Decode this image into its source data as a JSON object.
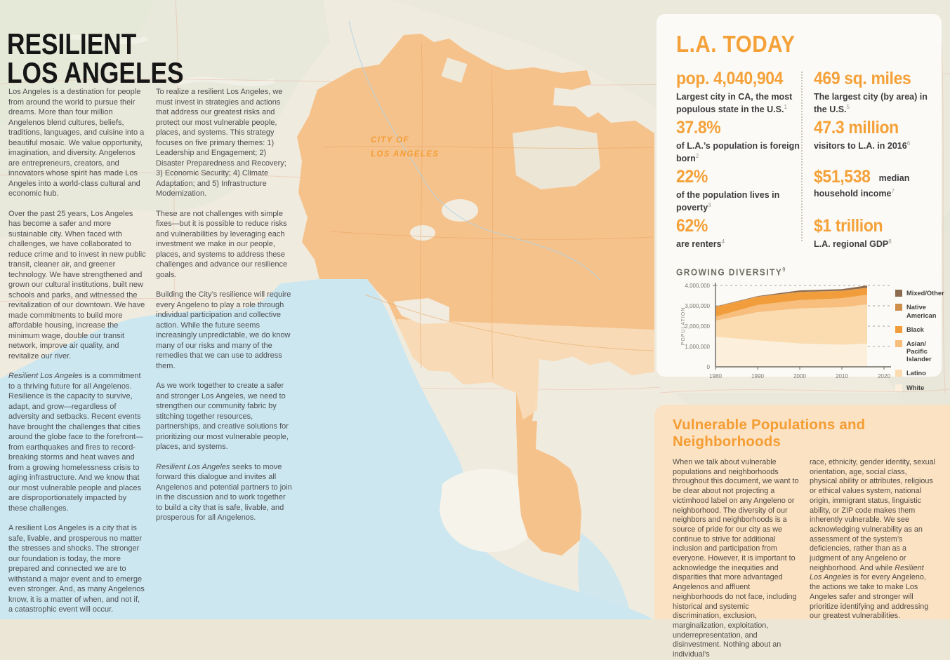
{
  "page_title": "RESILIENT\nLOS ANGELES",
  "map": {
    "label": "CITY OF\nLOS ANGELES",
    "colors": {
      "land": "#ece6d6",
      "ocean": "#cde7f0",
      "city": "#f6c28c",
      "city_south": "#f8dcb8",
      "accent": "#f5a139"
    }
  },
  "intro": {
    "col1": [
      "Los Angeles is a destination for people from around the world to pursue their dreams. More than four million Angelenos blend cultures, beliefs, traditions, languages, and cuisine into a beautiful mosaic. We value opportunity, imagination, and diversity. Angelenos are entrepreneurs, creators, and innovators whose spirit has made Los Angeles into a world-class cultural and economic hub.",
      "Over the past 25 years, Los Angeles has become a safer and more sustainable city. When faced with challenges, we have collaborated to reduce crime and to invest in new public transit, cleaner air, and greener technology. We have strengthened and grown our cultural institutions, built new schools and parks, and witnessed the revitalization of our downtown. We have made commitments to build more affordable housing, increase the minimum wage, double our transit network, improve air quality, and revitalize our river.",
      "*Resilient Los Angeles* is a commitment to a thriving future for all Angelenos. Resilience is the capacity to survive, adapt, and grow—regardless of adversity and setbacks. Recent events have brought the challenges that cities around the globe face to the forefront—from earthquakes and fires to record-breaking storms and heat waves and from a growing homelessness crisis to aging infrastructure. And we know that our most vulnerable people and places are disproportionately impacted by these challenges.",
      "A resilient Los Angeles is a city that is safe, livable, and prosperous no matter the stresses and shocks. The stronger our foundation is today, the more prepared and connected we are to withstand a major event and to emerge even stronger. And, as many Angelenos know, it is a matter of when, and not if, a catastrophic event will occur."
    ],
    "col2": [
      "To realize a resilient Los Angeles, we must invest in strategies and actions that address our greatest risks and protect our most vulnerable people, places, and systems. This strategy focuses on five primary themes: 1) Leadership and Engagement; 2) Disaster Preparedness and Recovery; 3) Economic Security; 4) Climate Adaptation; and 5) Infrastructure Modernization.",
      "These are not challenges with simple fixes—but it is possible to reduce risks and vulnerabilities by leveraging each investment we make in our people, places, and systems to address these challenges and advance our resilience goals.",
      "Building the City’s resilience will require every Angeleno to play a role through individual participation and collective action. While the future seems increasingly unpredictable, we do know many of our risks and many of the remedies that we can use to address them.",
      "As we work together to create a safer and stronger Los Angeles, we need to strengthen our community fabric by stitching together resources, partnerships, and creative solutions for prioritizing our most vulnerable people, places, and systems.",
      "*Resilient Los Angeles* seeks to move forward this dialogue and invites all Angelenos and potential partners to join in the discussion and to work together to build a city that is safe, livable, and prosperous for all Angelenos."
    ]
  },
  "la_today": {
    "title": "L.A. TODAY",
    "stats_left": [
      {
        "value": "pop. 4,040,904",
        "desc": "Largest city in CA, the most populous state in the U.S.",
        "sup": "1"
      },
      {
        "value": "37.8%",
        "desc": "of L.A.’s population is foreign born",
        "sup": "2"
      },
      {
        "value": "22%",
        "desc": "of the population lives in poverty",
        "sup": "3"
      },
      {
        "value": "62%",
        "desc": "are renters",
        "sup": "4"
      }
    ],
    "stats_right": [
      {
        "value": "469 sq. miles",
        "desc": "The largest city (by area) in the U.S.",
        "sup": "5"
      },
      {
        "value": "47.3 million",
        "desc": "visitors to L.A. in 2016",
        "sup": "6"
      },
      {
        "value": "$51,538",
        "desc": "median household income",
        "sup": "7",
        "inline_desc": true
      },
      {
        "value": "$1 trillion",
        "desc": "L.A. regional GDP",
        "sup": "8"
      }
    ]
  },
  "chart_data": {
    "type": "area",
    "title": "GROWING DIVERSITY",
    "title_sup": "9",
    "ylabel": "POPULATION",
    "xlabel": "",
    "x": [
      1980,
      1990,
      2000,
      2010,
      2016
    ],
    "xlim": [
      1980,
      2020
    ],
    "ylim": [
      0,
      4000000
    ],
    "xticks": [
      1980,
      1990,
      2000,
      2010,
      2020
    ],
    "yticks": [
      {
        "v": 0,
        "label": "0"
      },
      {
        "v": 1000000,
        "label": "1,000,000"
      },
      {
        "v": 2000000,
        "label": "2,000,000"
      },
      {
        "v": 3000000,
        "label": "3,000,000"
      },
      {
        "v": 4000000,
        "label": "4,000,000"
      }
    ],
    "grid": true,
    "legend_position": "right",
    "series": [
      {
        "name": "White",
        "color": "#fcf0dd",
        "values": [
          1480000,
          1300000,
          1150000,
          1090000,
          1140000
        ]
      },
      {
        "name": "Latino",
        "color": "#fadcb0",
        "values": [
          790000,
          1390000,
          1720000,
          1840000,
          1930000
        ]
      },
      {
        "name": "Asian/\nPacific Islander",
        "color": "#f7be7d",
        "values": [
          200000,
          350000,
          410000,
          440000,
          480000
        ]
      },
      {
        "name": "Black",
        "color": "#f19d3b",
        "values": [
          470000,
          400000,
          390000,
          360000,
          330000
        ]
      },
      {
        "name": "Native American",
        "color": "#cd8f4a",
        "values": [
          10000,
          10000,
          10000,
          10000,
          10000
        ]
      },
      {
        "name": "Mixed/Other",
        "color": "#8c6b4f",
        "values": [
          20000,
          30000,
          80000,
          80000,
          110000
        ]
      }
    ]
  },
  "vulnerable": {
    "title": "Vulnerable Populations and Neighborhoods",
    "col1": [
      "When we talk about vulnerable populations and neighborhoods throughout this document, we want to be clear about not projecting a victimhood label on any Angeleno or neighborhood. The diversity of our neighbors and neighborhoods is a source of pride for our city as we continue to strive for additional inclusion and participation from everyone. However, it is important to acknowledge the inequities and disparities that more advantaged Angelenos and affluent neighborhoods do not face, including historical and systemic discrimination, exclusion, marginalization, exploitation, underrepresentation, and disinvestment. Nothing about an individual’s"
    ],
    "col2": [
      "race, ethnicity, gender identity, sexual orientation, age, social class, physical ability or attributes, religious or ethical values system, national origin, immigrant status, linguistic ability, or ZIP code makes them inherently vulnerable. We see acknowledging vulnerability as an assessment of the system’s deficiencies, rather than as a judgment of any Angeleno or neighborhood. And while *Resilient Los Angeles* is for every Angeleno, the actions we take to make Los Angeles safer and stronger will prioritize identifying and addressing our greatest vulnerabilities."
    ]
  }
}
